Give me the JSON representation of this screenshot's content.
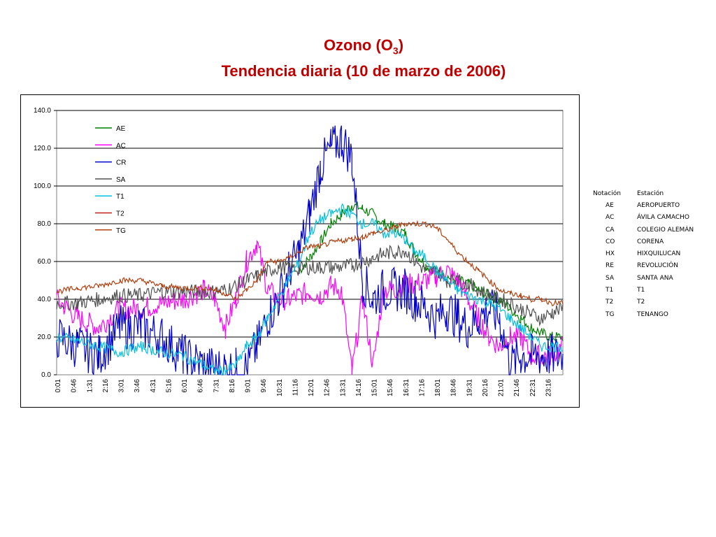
{
  "title": {
    "line1_prefix": "Ozono (O",
    "line1_sub": "3",
    "line1_suffix": ")",
    "line2": "Tendencia diaria (10 de marzo de 2006)"
  },
  "colors": {
    "title": "#c00000",
    "AE": "#008000",
    "AC": "#ff00ff",
    "CR": "#0000cc",
    "SA": "#505050",
    "T1": "#00c0e0",
    "T2": "#c02020",
    "TG": "#b04010"
  },
  "station_table": {
    "headers": [
      "Notación",
      "Estación"
    ],
    "rows": [
      [
        "AE",
        "AEROPUERTO"
      ],
      [
        "AC",
        "ÁVILA CAMACHO"
      ],
      [
        "CA",
        "COLEGIO ALEMÁN"
      ],
      [
        "CO",
        "CORENA"
      ],
      [
        "HX",
        "HIXQUILUCAN"
      ],
      [
        "RE",
        "REVOLUCIÓN"
      ],
      [
        "SA",
        "SANTA ANA"
      ],
      [
        "T1",
        "T1"
      ],
      [
        "T2",
        "T2"
      ],
      [
        "TG",
        "TENANGO"
      ]
    ]
  },
  "chart_data": {
    "type": "line",
    "title": "Ozono (O3) Tendencia diaria (10 de marzo de 2006)",
    "xlabel": "",
    "ylabel": "",
    "ylim": [
      0,
      140
    ],
    "yticks": [
      "0.0",
      "20.0",
      "40.0",
      "60.0",
      "80.0",
      "100.0",
      "120.0",
      "140.0"
    ],
    "grid": "horizontal",
    "legend": "top-left",
    "xticks": [
      "0:01",
      "0:46",
      "1:31",
      "2:16",
      "3:01",
      "3:46",
      "4:31",
      "5:16",
      "6:01",
      "6:46",
      "7:31",
      "8:16",
      "9:01",
      "9:46",
      "10:31",
      "11:16",
      "12:01",
      "12:46",
      "13:31",
      "14:16",
      "15:01",
      "15:46",
      "16:31",
      "17:16",
      "18:01",
      "18:46",
      "19:31",
      "20:16",
      "21:01",
      "21:46",
      "22:31",
      "23:16"
    ],
    "x_hours": [
      0,
      1,
      2,
      3,
      4,
      5,
      6,
      7,
      7.5,
      8,
      8.5,
      9,
      9.5,
      10,
      10.5,
      11,
      11.5,
      12,
      12.5,
      13,
      13.5,
      14,
      14.5,
      15,
      15.5,
      16,
      16.5,
      17,
      17.5,
      18,
      18.5,
      19,
      19.5,
      20,
      20.5,
      21,
      21.5,
      22,
      22.5,
      23,
      23.5,
      24
    ],
    "series": [
      {
        "name": "AE",
        "values": [
          null,
          null,
          null,
          null,
          null,
          null,
          null,
          null,
          null,
          null,
          null,
          null,
          null,
          null,
          null,
          null,
          55,
          62,
          70,
          80,
          85,
          90,
          88,
          85,
          80,
          78,
          75,
          65,
          58,
          55,
          52,
          50,
          48,
          45,
          42,
          40,
          35,
          30,
          25,
          22,
          20,
          20
        ]
      },
      {
        "name": "AC",
        "values": [
          40,
          30,
          25,
          35,
          35,
          38,
          40,
          45,
          40,
          25,
          40,
          60,
          70,
          45,
          40,
          40,
          42,
          44,
          42,
          47,
          45,
          1,
          40,
          5,
          45,
          45,
          48,
          48,
          50,
          52,
          55,
          50,
          40,
          30,
          20,
          15,
          20,
          20,
          10,
          10,
          10,
          15
        ]
      },
      {
        "name": "CR",
        "values": [
          20,
          15,
          10,
          25,
          25,
          20,
          10,
          5,
          3,
          3,
          3,
          3,
          15,
          30,
          40,
          55,
          65,
          85,
          110,
          120,
          125,
          115,
          50,
          40,
          45,
          45,
          45,
          40,
          35,
          30,
          35,
          30,
          25,
          30,
          35,
          30,
          5,
          10,
          10,
          10,
          10,
          10
        ]
      },
      {
        "name": "SA",
        "values": [
          38,
          38,
          40,
          42,
          42,
          44,
          44,
          44,
          44,
          45,
          47,
          50,
          52,
          55,
          57,
          57,
          56,
          57,
          57,
          57,
          57,
          58,
          60,
          62,
          64,
          65,
          66,
          60,
          55,
          55,
          50,
          50,
          48,
          45,
          42,
          40,
          38,
          35,
          32,
          30,
          33,
          35
        ]
      },
      {
        "name": "T1",
        "values": [
          20,
          18,
          15,
          12,
          15,
          12,
          10,
          5,
          2,
          2,
          5,
          15,
          20,
          30,
          40,
          50,
          60,
          75,
          82,
          85,
          88,
          85,
          80,
          80,
          75,
          75,
          72,
          65,
          62,
          55,
          50,
          45,
          42,
          40,
          38,
          35,
          30,
          25,
          20,
          15,
          15,
          15
        ]
      },
      {
        "name": "TG",
        "values": [
          44,
          46,
          47,
          50,
          50,
          47,
          46,
          46,
          45,
          43,
          40,
          45,
          50,
          60,
          60,
          62,
          65,
          68,
          68,
          70,
          71,
          72,
          73,
          75,
          76,
          78,
          80,
          80,
          80,
          78,
          72,
          65,
          60,
          55,
          50,
          45,
          43,
          42,
          40,
          40,
          38,
          38
        ]
      }
    ]
  }
}
